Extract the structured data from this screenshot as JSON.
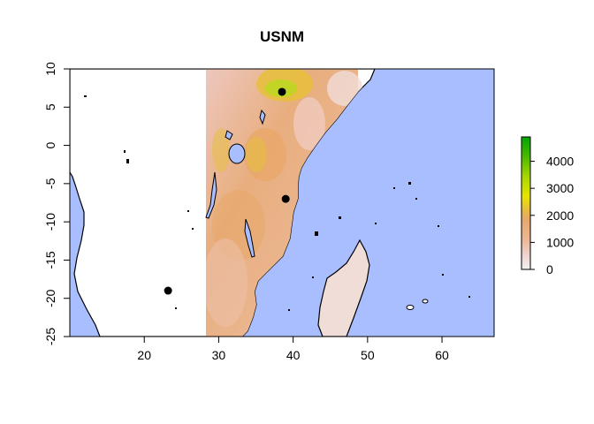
{
  "title": "USNM",
  "map": {
    "x_range": [
      10,
      67
    ],
    "y_range": [
      -25,
      10
    ],
    "x_ticks": [
      "20",
      "30",
      "40",
      "50",
      "60"
    ],
    "y_ticks": [
      "-25",
      "-20",
      "-15",
      "-10",
      "-5",
      "0",
      "5",
      "10"
    ],
    "ocean_color": "#A9BEFF",
    "raster_extent": {
      "lon": [
        29,
        48.7
      ],
      "lat": [
        -25,
        10
      ]
    },
    "points": [
      {
        "lon": 38.5,
        "lat": 7.0
      },
      {
        "lon": 39.0,
        "lat": -7.0
      },
      {
        "lon": 23.2,
        "lat": -19.0
      }
    ]
  },
  "legend": {
    "ticks": [
      "4000",
      "3000",
      "2000",
      "1000",
      "0"
    ],
    "max_value": 4900,
    "colors": [
      "#F2F2F2",
      "#EFC8C0",
      "#EDB48E",
      "#E8A86A",
      "#E6C03A",
      "#E8E600",
      "#9FD400",
      "#2FB100",
      "#00A600"
    ]
  }
}
